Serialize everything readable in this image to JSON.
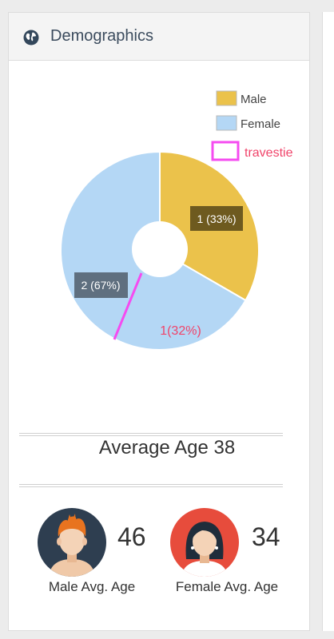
{
  "panel": {
    "title": "Demographics",
    "icon": "globe-icon"
  },
  "chart_data": {
    "type": "pie",
    "categories": [
      "Male",
      "Female"
    ],
    "values": [
      1,
      2
    ],
    "slice_labels": [
      "1 (33%)",
      "2 (67%)"
    ],
    "colors": [
      "#ebc24b",
      "#b4d7f5"
    ],
    "legend_placement": "top-right",
    "annotations": {
      "legend_extra": "travestie",
      "slice_extra": "1(32%)",
      "color": "#f0446a"
    }
  },
  "stats": {
    "average_age_label": "Average Age 38",
    "male": {
      "value": "46",
      "caption": "Male Avg. Age",
      "avatar": "male-avatar-icon"
    },
    "female": {
      "value": "34",
      "caption": "Female Avg. Age",
      "avatar": "female-avatar-icon"
    }
  }
}
